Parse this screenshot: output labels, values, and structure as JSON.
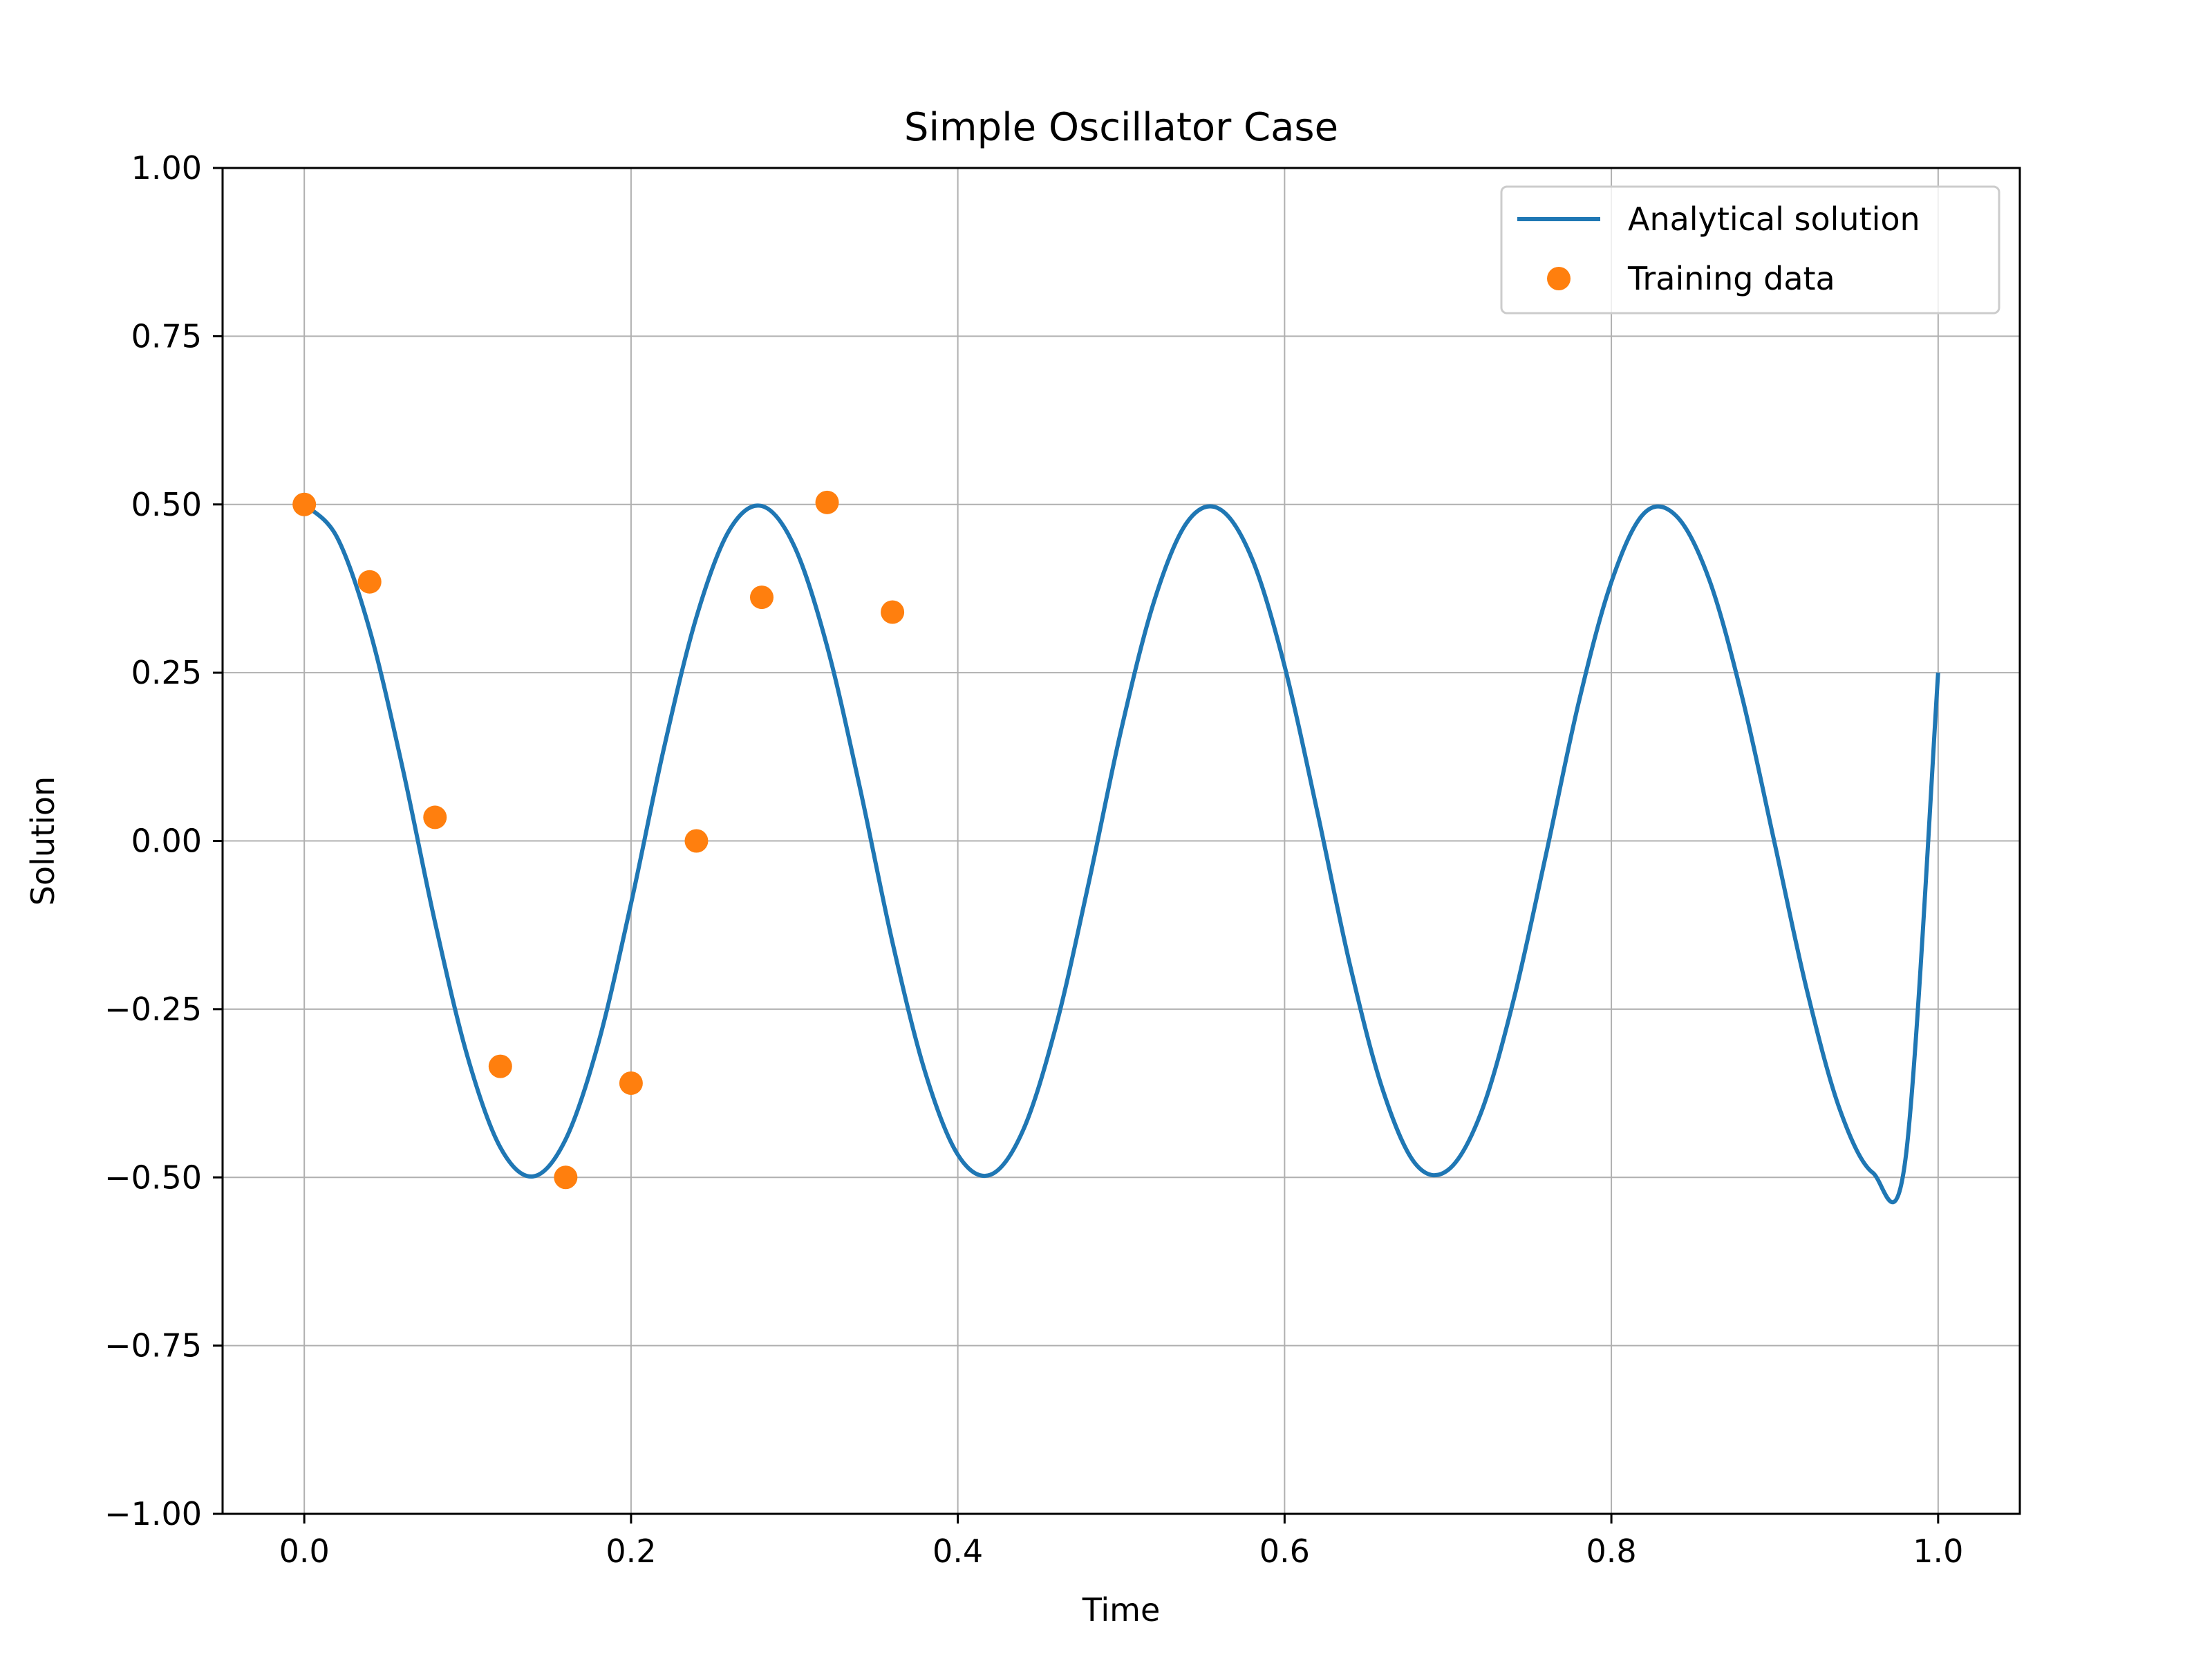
{
  "chart_data": {
    "type": "line",
    "title": "Simple Oscillator Case",
    "xlabel": "Time",
    "ylabel": "Solution",
    "xlim": [
      -0.05,
      1.05
    ],
    "ylim": [
      -1.0,
      1.0
    ],
    "xticks": [
      0.0,
      0.2,
      0.4,
      0.6,
      0.8,
      1.0
    ],
    "xtick_labels": [
      "0.0",
      "0.2",
      "0.4",
      "0.6",
      "0.8",
      "1.0"
    ],
    "yticks": [
      -1.0,
      -0.75,
      -0.5,
      -0.25,
      0.0,
      0.25,
      0.5,
      0.75,
      1.0
    ],
    "ytick_labels": [
      "−1.00",
      "−0.75",
      "−0.50",
      "−0.25",
      "0.00",
      "0.25",
      "0.50",
      "0.75",
      "1.00"
    ],
    "grid": true,
    "legend_position": "top-right",
    "series": [
      {
        "name": "Analytical solution",
        "kind": "line",
        "color": "#1f77b4",
        "x": [
          0.0,
          0.02,
          0.04,
          0.06,
          0.08,
          0.1,
          0.12,
          0.14,
          0.16,
          0.18,
          0.2,
          0.22,
          0.24,
          0.26,
          0.28,
          0.3,
          0.32,
          0.34,
          0.36,
          0.38,
          0.4,
          0.42,
          0.44,
          0.46,
          0.48,
          0.5,
          0.52,
          0.54,
          0.56,
          0.58,
          0.6,
          0.62,
          0.64,
          0.66,
          0.68,
          0.7,
          0.72,
          0.74,
          0.76,
          0.78,
          0.8,
          0.82,
          0.84,
          0.86,
          0.88,
          0.9,
          0.92,
          0.94,
          0.96,
          0.98,
          1.0
        ],
        "y": [
          0.5,
          0.4515,
          0.3138,
          0.1103,
          -0.1206,
          -0.3213,
          -0.4555,
          -0.4986,
          -0.4434,
          -0.3004,
          -0.0929,
          0.1365,
          0.3325,
          0.4611,
          0.4977,
          0.4375,
          0.2891,
          0.0798,
          -0.1508,
          -0.3436,
          -0.4663,
          -0.4961,
          -0.4297,
          -0.2761,
          -0.0637,
          0.1652,
          0.3551,
          0.4724,
          0.4935,
          0.4197,
          0.2598,
          0.0436,
          -0.1842,
          -0.3694,
          -0.4796,
          -0.4891,
          -0.4054,
          -0.2378,
          -0.0201,
          0.2056,
          0.3847,
          0.4868,
          0.4822,
          0.3875,
          0.2142,
          -0.0042,
          -0.2251,
          -0.4004,
          -0.4931,
          -0.4729,
          0.25
        ]
      },
      {
        "name": "Training data",
        "kind": "scatter",
        "color": "#ff7f0e",
        "x": [
          0.0,
          0.04,
          0.08,
          0.12,
          0.16,
          0.2,
          0.24,
          0.28,
          0.32,
          0.36
        ],
        "y": [
          0.5,
          0.385,
          0.035,
          -0.335,
          -0.5,
          -0.36,
          0.0,
          0.362,
          0.503,
          0.34
        ]
      }
    ]
  }
}
